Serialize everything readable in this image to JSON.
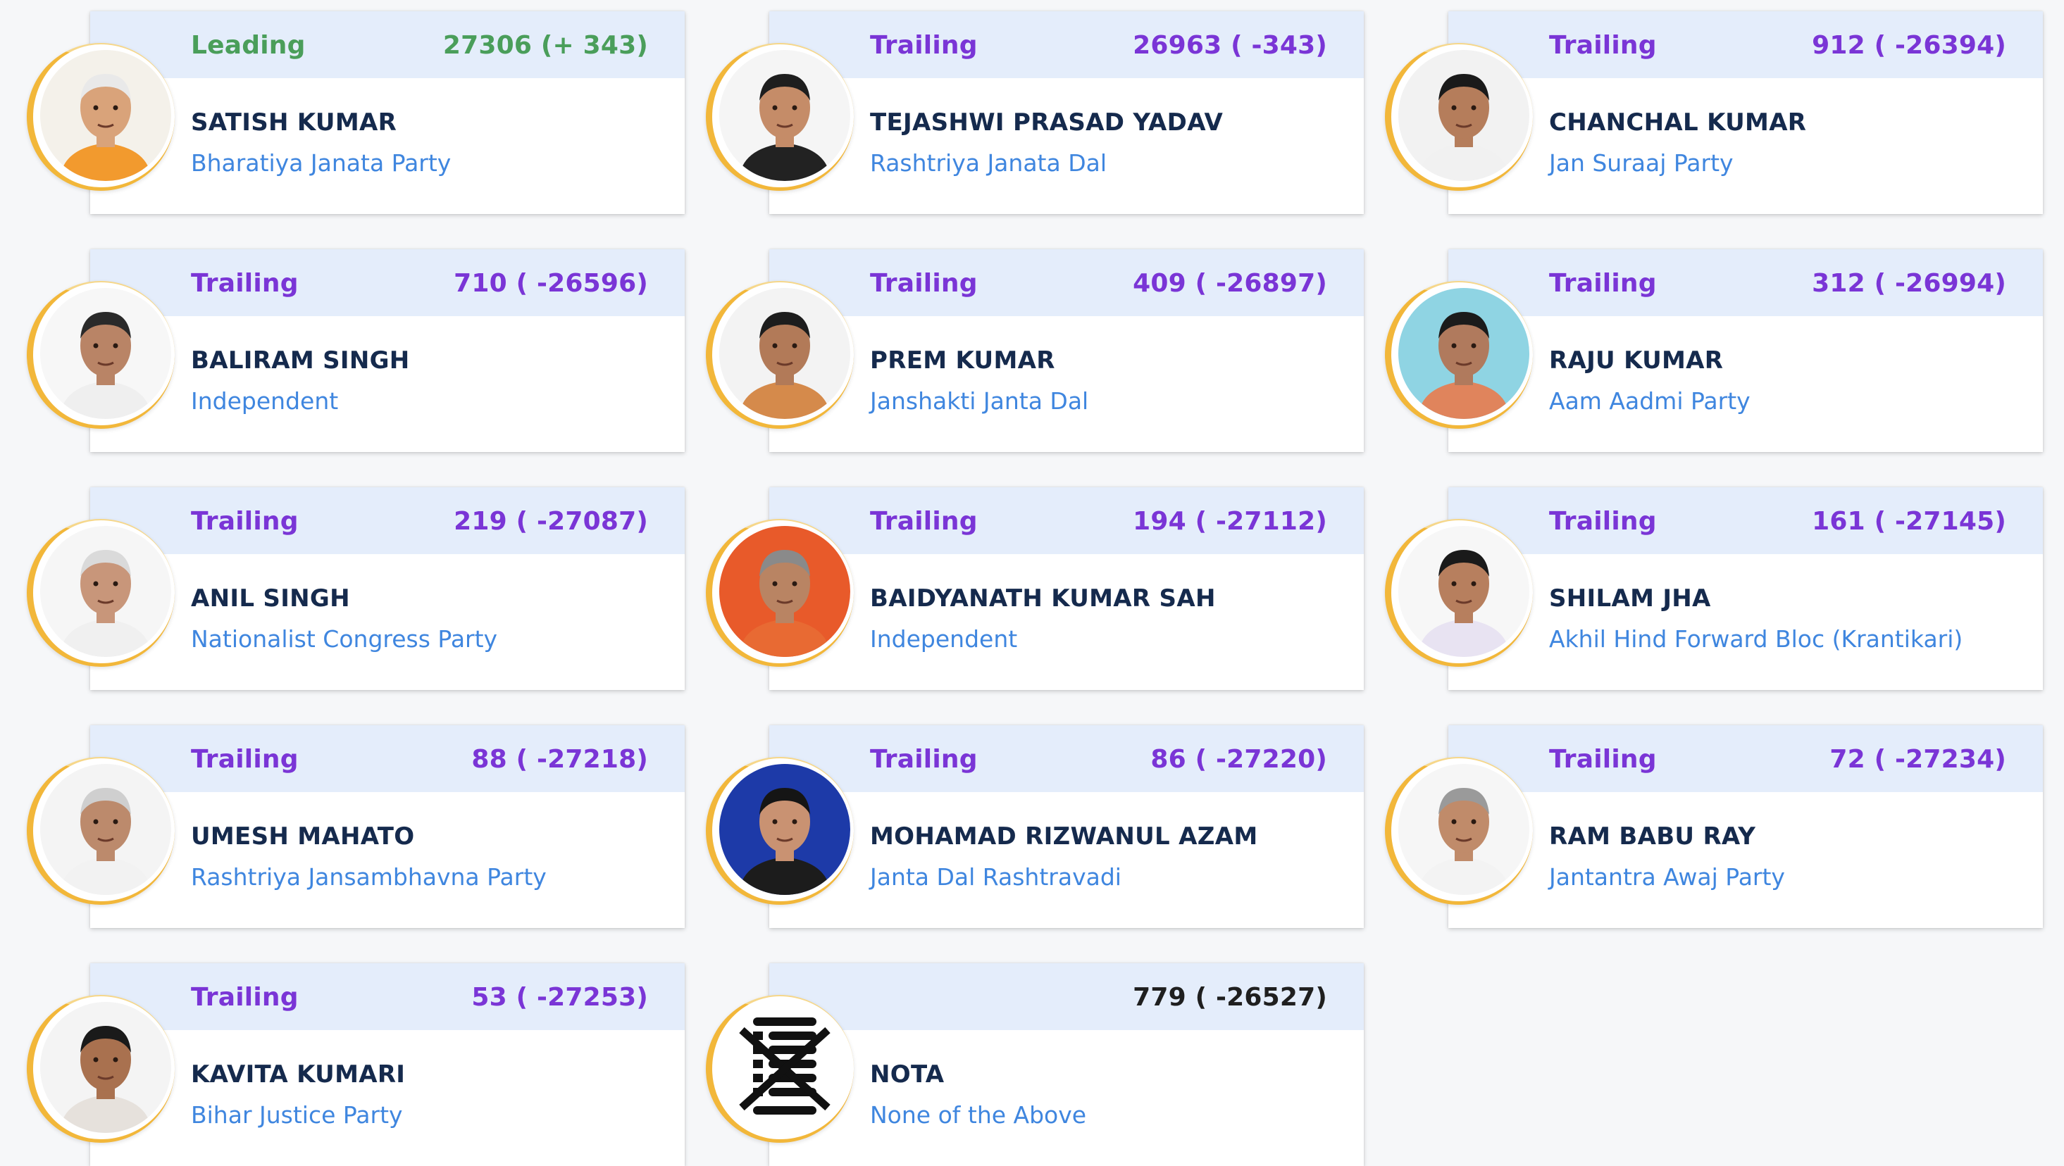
{
  "colors": {
    "leading": "#4a9e5a",
    "trailing": "#7a35d6",
    "name": "#152a4d",
    "party": "#3f86df",
    "header_bg": "#e4edfb",
    "ring": "#f2b73a"
  },
  "candidates": [
    {
      "status": "Leading",
      "votes": "27306 (+ 343)",
      "name": "SATISH KUMAR",
      "party": "Bharatiya Janata Party",
      "photo": "candidate-photo"
    },
    {
      "status": "Trailing",
      "votes": "26963 ( -343)",
      "name": "TEJASHWI PRASAD YADAV",
      "party": "Rashtriya Janata Dal",
      "photo": "candidate-photo"
    },
    {
      "status": "Trailing",
      "votes": "912 ( -26394)",
      "name": "CHANCHAL KUMAR",
      "party": "Jan Suraaj Party",
      "photo": "candidate-photo"
    },
    {
      "status": "Trailing",
      "votes": "710 ( -26596)",
      "name": "BALIRAM SINGH",
      "party": "Independent",
      "photo": "candidate-photo"
    },
    {
      "status": "Trailing",
      "votes": "409 ( -26897)",
      "name": "PREM KUMAR",
      "party": "Janshakti Janta Dal",
      "photo": "candidate-photo"
    },
    {
      "status": "Trailing",
      "votes": "312 ( -26994)",
      "name": "RAJU KUMAR",
      "party": "Aam Aadmi Party",
      "photo": "candidate-photo"
    },
    {
      "status": "Trailing",
      "votes": "219 ( -27087)",
      "name": "ANIL SINGH",
      "party": "Nationalist Congress Party",
      "photo": "candidate-photo"
    },
    {
      "status": "Trailing",
      "votes": "194 ( -27112)",
      "name": "BAIDYANATH KUMAR SAH",
      "party": "Independent",
      "photo": "candidate-photo"
    },
    {
      "status": "Trailing",
      "votes": "161 ( -27145)",
      "name": "SHILAM JHA",
      "party": "Akhil Hind Forward Bloc (Krantikari)",
      "photo": "candidate-photo"
    },
    {
      "status": "Trailing",
      "votes": "88 ( -27218)",
      "name": "UMESH MAHATO",
      "party": "Rashtriya Jansambhavna Party",
      "photo": "candidate-photo"
    },
    {
      "status": "Trailing",
      "votes": "86 ( -27220)",
      "name": "MOHAMAD RIZWANUL AZAM",
      "party": "Janta Dal Rashtravadi",
      "photo": "candidate-photo"
    },
    {
      "status": "Trailing",
      "votes": "72 ( -27234)",
      "name": "RAM BABU RAY",
      "party": "Jantantra Awaj Party",
      "photo": "candidate-photo"
    },
    {
      "status": "Trailing",
      "votes": "53 ( -27253)",
      "name": "KAVITA KUMARI",
      "party": "Bihar Justice Party",
      "photo": "candidate-photo"
    },
    {
      "status": "",
      "votes": "779 ( -26527)",
      "name": "NOTA",
      "party": "None of the Above",
      "photo": "nota-symbol-icon"
    }
  ]
}
